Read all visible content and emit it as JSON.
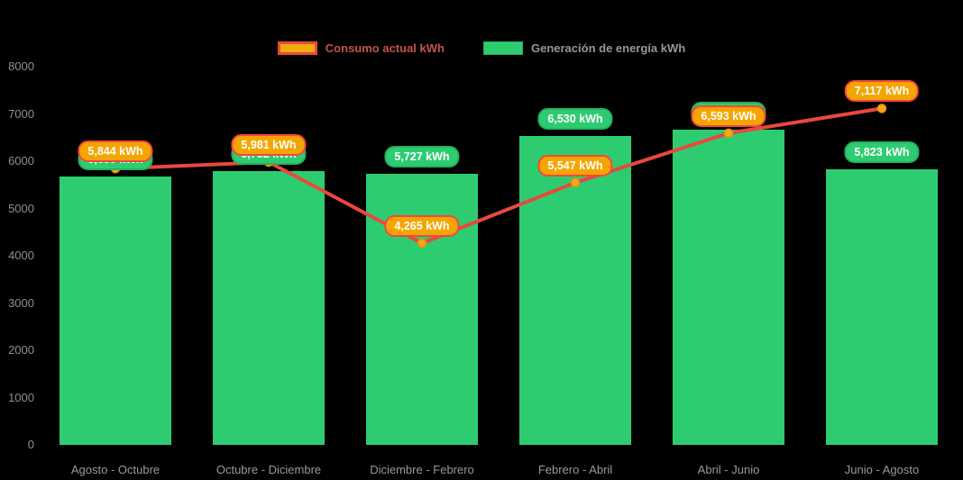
{
  "legend": {
    "consumo_label": "Consumo actual kWh",
    "generacion_label": "Generación de energía kWh"
  },
  "colors": {
    "background": "#000000",
    "bar_green": "#2ecc71",
    "bar_green_border": "#25b160",
    "line_red": "#e8493e",
    "marker_orange": "#f9a61a",
    "marker_orange_border": "#e8930c",
    "pill_orange_fill": "#f5a502",
    "pill_orange_border": "#f2473f",
    "axis_text_gray": "#8f8f8f"
  },
  "chart_data": {
    "type": "bar",
    "subtype": "bar-with-line-overlay",
    "title": "",
    "xlabel": "",
    "ylabel": "",
    "ylim": [
      0,
      8000
    ],
    "ytick_step": 1000,
    "yticks": [
      "0",
      "1000",
      "2000",
      "3000",
      "4000",
      "5000",
      "6000",
      "7000",
      "8000"
    ],
    "grid": false,
    "legend_position": "top-center",
    "categories": [
      "Agosto - Octubre",
      "Octubre - Diciembre",
      "Diciembre - Febrero",
      "Febrero - Abril",
      "Abril - Junio",
      "Junio - Agosto"
    ],
    "series": [
      {
        "name": "Generación de energía kWh",
        "render": "bar",
        "color": "#2ecc71",
        "values": [
          5680,
          5782,
          5727,
          6530,
          6670,
          5823
        ],
        "value_labels": [
          "5,680 kWh",
          "5,782 kWh",
          "5,727 kWh",
          "6,530 kWh",
          "6,670 kWh",
          "5,823 kWh"
        ],
        "label_visibility": [
          "partially hidden behind line label",
          "visible",
          "visible",
          "visible",
          "hidden behind line label",
          "visible"
        ]
      },
      {
        "name": "Consumo actual kWh",
        "render": "line",
        "color": "#e8493e",
        "values": [
          5844,
          5981,
          4265,
          5547,
          6593,
          7117
        ],
        "value_labels": [
          "5,844 kWh",
          "5,981 kWh",
          "4,265 kWh",
          "5,547 kWh",
          "6,593 kWh",
          "7,117 kWh"
        ]
      }
    ]
  }
}
